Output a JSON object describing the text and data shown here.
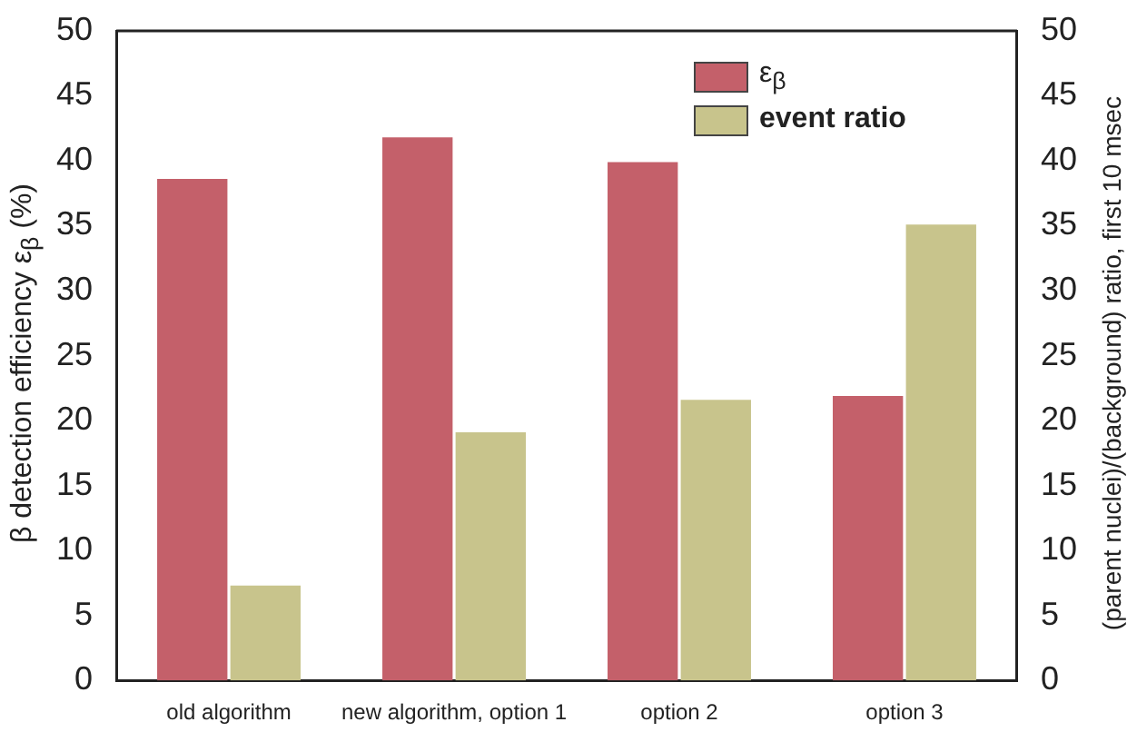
{
  "chart_data": {
    "type": "bar",
    "categories": [
      "old algorithm",
      "new algorithm, option 1",
      "option 2",
      "option 3"
    ],
    "series": [
      {
        "name": "ε$_{β}$",
        "color": "#c4606a",
        "values": [
          38.6,
          41.8,
          39.9,
          21.9
        ]
      },
      {
        "name": "event ratio",
        "color": "#c8c48c",
        "values": [
          7.3,
          19.1,
          21.6,
          35.1
        ],
        "axis": "y2"
      }
    ],
    "ylabel": "β detection efficiency ε$_{β}$ (%)",
    "y2label": "(parent nuclei)/(background) ratio, first 10 msec",
    "ylim": [
      0,
      50
    ],
    "yticks": [
      0,
      5,
      10,
      15,
      20,
      25,
      30,
      35,
      40,
      45,
      50
    ],
    "y2lim": [
      0,
      50
    ],
    "y2ticks": [
      0,
      5,
      10,
      15,
      20,
      25,
      30,
      35,
      40,
      45,
      50
    ],
    "legend": "top right"
  }
}
